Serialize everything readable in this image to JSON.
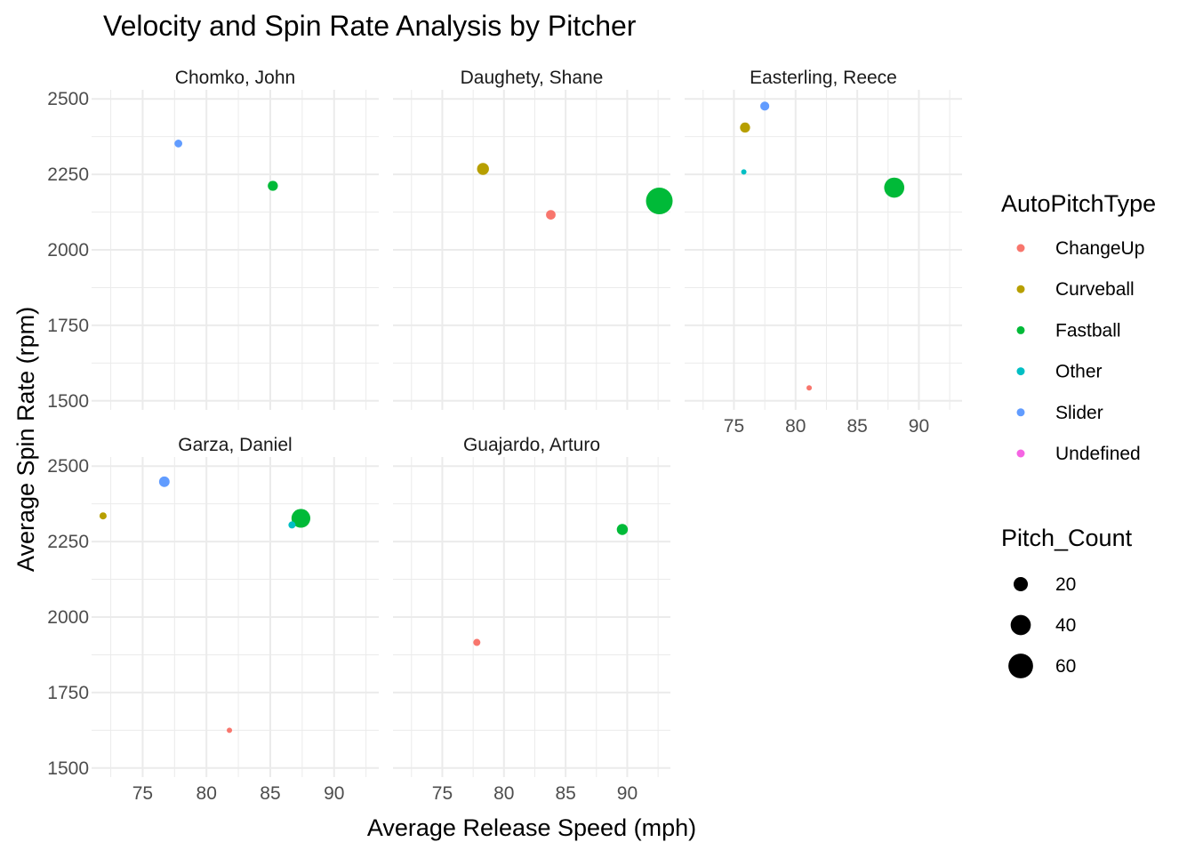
{
  "chart_data": {
    "type": "scatter",
    "title": "Velocity and Spin Rate Analysis by Pitcher",
    "xlabel": "Average Release Speed (mph)",
    "ylabel": "Average Spin Rate (rpm)",
    "xlim": [
      71,
      93.5
    ],
    "ylim": [
      1470,
      2530
    ],
    "x_ticks": [
      75,
      80,
      85,
      90
    ],
    "y_ticks": [
      1500,
      1750,
      2000,
      2250,
      2500
    ],
    "grid": true,
    "color_legend": {
      "title": "AutoPitchType",
      "placement": "right",
      "items": [
        {
          "name": "ChangeUp",
          "color": "#F8766D"
        },
        {
          "name": "Curveball",
          "color": "#B79F00"
        },
        {
          "name": "Fastball",
          "color": "#00BA38"
        },
        {
          "name": "Other",
          "color": "#00BFC4"
        },
        {
          "name": "Slider",
          "color": "#619CFF"
        },
        {
          "name": "Undefined",
          "color": "#F564E3"
        }
      ]
    },
    "size_legend": {
      "title": "Pitch_Count",
      "placement": "right",
      "items": [
        {
          "label": "20",
          "value": 20
        },
        {
          "label": "40",
          "value": 40
        },
        {
          "label": "60",
          "value": 60
        }
      ]
    },
    "facets": [
      {
        "name": "Chomko, John",
        "points": [
          {
            "type": "Slider",
            "x": 77.8,
            "y": 2352,
            "count": 6
          },
          {
            "type": "Fastball",
            "x": 85.2,
            "y": 2212,
            "count": 10
          }
        ]
      },
      {
        "name": "Daughety, Shane",
        "points": [
          {
            "type": "Curveball",
            "x": 78.3,
            "y": 2268,
            "count": 14
          },
          {
            "type": "ChangeUp",
            "x": 83.8,
            "y": 2116,
            "count": 9
          },
          {
            "type": "Fastball",
            "x": 92.6,
            "y": 2162,
            "count": 70
          }
        ]
      },
      {
        "name": "Easterling, Reece",
        "points": [
          {
            "type": "Slider",
            "x": 77.5,
            "y": 2476,
            "count": 8
          },
          {
            "type": "Curveball",
            "x": 75.9,
            "y": 2405,
            "count": 10
          },
          {
            "type": "Other",
            "x": 75.8,
            "y": 2258,
            "count": 1
          },
          {
            "type": "Fastball",
            "x": 88.0,
            "y": 2206,
            "count": 40
          },
          {
            "type": "ChangeUp",
            "x": 81.1,
            "y": 1543,
            "count": 1
          }
        ]
      },
      {
        "name": "Garza, Daniel",
        "points": [
          {
            "type": "Slider",
            "x": 76.7,
            "y": 2448,
            "count": 11
          },
          {
            "type": "Curveball",
            "x": 71.9,
            "y": 2335,
            "count": 5
          },
          {
            "type": "Other",
            "x": 86.7,
            "y": 2305,
            "count": 5
          },
          {
            "type": "Fastball",
            "x": 87.4,
            "y": 2327,
            "count": 35
          },
          {
            "type": "ChangeUp",
            "x": 81.8,
            "y": 1625,
            "count": 1
          }
        ]
      },
      {
        "name": "Guajardo, Arturo",
        "points": [
          {
            "type": "Fastball",
            "x": 89.6,
            "y": 2290,
            "count": 12
          },
          {
            "type": "ChangeUp",
            "x": 77.8,
            "y": 1916,
            "count": 5
          }
        ]
      }
    ]
  }
}
